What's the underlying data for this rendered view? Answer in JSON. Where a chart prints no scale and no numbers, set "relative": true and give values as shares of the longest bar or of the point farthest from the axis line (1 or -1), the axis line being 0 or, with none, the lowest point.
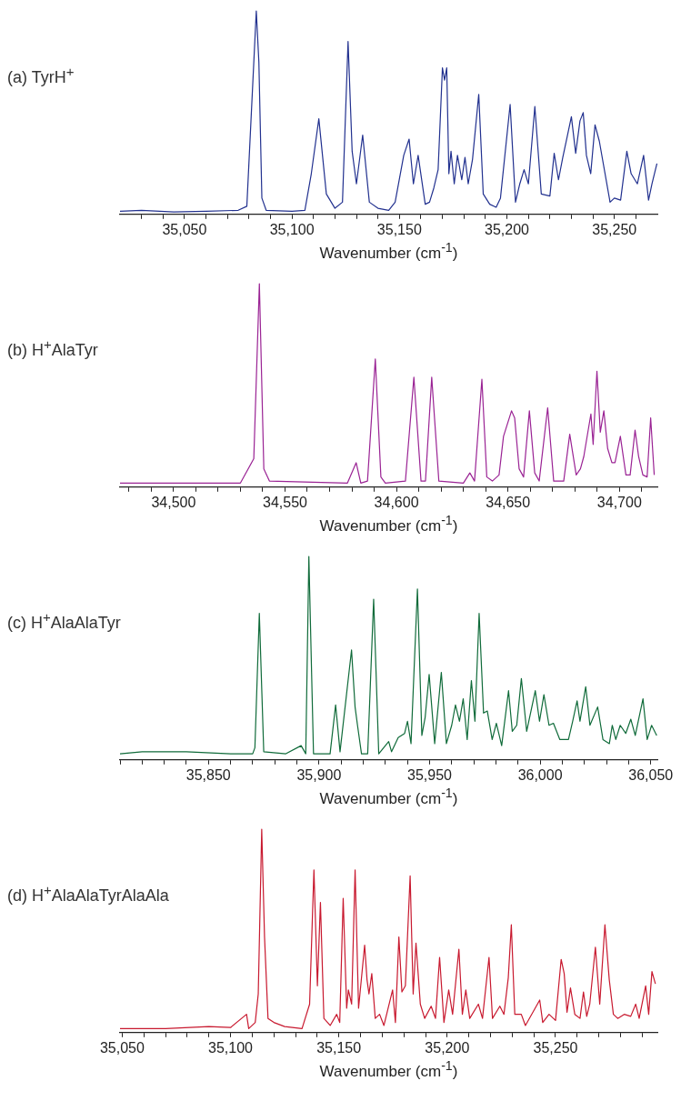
{
  "chart_data": [
    {
      "type": "line",
      "title": "(a) TyrH$^{+}$",
      "xlabel": "Wavenumber (cm$^{-1}$)",
      "relative": true,
      "marker": "none",
      "xlim": [
        35020,
        35270
      ],
      "xticks": [
        {
          "value": 35030,
          "label": null
        },
        {
          "value": 35040,
          "label": null
        },
        {
          "value": 35050,
          "label": "35,050"
        },
        {
          "value": 35060,
          "label": null
        },
        {
          "value": 35070,
          "label": null
        },
        {
          "value": 35080,
          "label": null
        },
        {
          "value": 35090,
          "label": null
        },
        {
          "value": 35100,
          "label": "35,100"
        },
        {
          "value": 35110,
          "label": null
        },
        {
          "value": 35120,
          "label": null
        },
        {
          "value": 35130,
          "label": null
        },
        {
          "value": 35140,
          "label": null
        },
        {
          "value": 35150,
          "label": "35,150"
        },
        {
          "value": 35160,
          "label": null
        },
        {
          "value": 35170,
          "label": null
        },
        {
          "value": 35180,
          "label": null
        },
        {
          "value": 35190,
          "label": null
        },
        {
          "value": 35200,
          "label": "35,200"
        },
        {
          "value": 35210,
          "label": null
        },
        {
          "value": 35220,
          "label": null
        },
        {
          "value": 35230,
          "label": null
        },
        {
          "value": 35240,
          "label": null
        },
        {
          "value": 35250,
          "label": "35,250"
        },
        {
          "value": 35260,
          "label": null
        }
      ],
      "x": [
        35020,
        35030,
        35045,
        35060,
        35075,
        35079,
        35083.4,
        35084.6,
        35086,
        35088,
        35100,
        35106,
        35109,
        35112.5,
        35116,
        35120,
        35123.5,
        35126.1,
        35128,
        35130,
        35132.9,
        35136,
        35140,
        35145,
        35148,
        35152,
        35154.5,
        35156.5,
        35158.7,
        35162,
        35164,
        35166,
        35168,
        35170,
        35171,
        35172,
        35173,
        35174,
        35175.5,
        35177,
        35179,
        35180.5,
        35182,
        35184,
        35186.9,
        35189,
        35192,
        35195,
        35197,
        35201.5,
        35204,
        35206,
        35208,
        35210,
        35213,
        35216,
        35220,
        35222,
        35224,
        35226,
        35228,
        35230,
        35232,
        35234,
        35235.5,
        35237,
        35239,
        35241,
        35243,
        35248,
        35250,
        35252.9,
        35255.8,
        35257.8,
        35260.7,
        35263.6,
        35265.9,
        35267.5,
        35269.8
      ],
      "series": [
        {
          "color": "#22318f",
          "values": [
            0.015,
            0.02,
            0.012,
            0.015,
            0.02,
            0.04,
            1.0,
            0.75,
            0.08,
            0.02,
            0.015,
            0.02,
            0.2,
            0.47,
            0.1,
            0.03,
            0.06,
            0.85,
            0.31,
            0.15,
            0.39,
            0.06,
            0.03,
            0.02,
            0.06,
            0.29,
            0.37,
            0.15,
            0.29,
            0.05,
            0.06,
            0.13,
            0.22,
            0.72,
            0.66,
            0.72,
            0.2,
            0.31,
            0.15,
            0.29,
            0.17,
            0.28,
            0.15,
            0.27,
            0.59,
            0.1,
            0.05,
            0.035,
            0.08,
            0.54,
            0.06,
            0.15,
            0.22,
            0.15,
            0.53,
            0.1,
            0.09,
            0.3,
            0.17,
            0.28,
            0.38,
            0.48,
            0.3,
            0.46,
            0.5,
            0.29,
            0.2,
            0.44,
            0.36,
            0.06,
            0.08,
            0.07,
            0.31,
            0.2,
            0.15,
            0.29,
            0.07,
            0.15,
            0.25
          ]
        }
      ]
    },
    {
      "type": "line",
      "title": "(b) H$^{+}$AlaTyr",
      "xlabel": "Wavenumber (cm$^{-1}$)",
      "relative": true,
      "marker": "none",
      "xlim": [
        34476,
        34717
      ],
      "xticks": [
        {
          "value": 34480,
          "label": null
        },
        {
          "value": 34490,
          "label": null
        },
        {
          "value": 34500,
          "label": "34,500"
        },
        {
          "value": 34510,
          "label": null
        },
        {
          "value": 34520,
          "label": null
        },
        {
          "value": 34530,
          "label": null
        },
        {
          "value": 34540,
          "label": null
        },
        {
          "value": 34550,
          "label": "34,550"
        },
        {
          "value": 34560,
          "label": null
        },
        {
          "value": 34570,
          "label": null
        },
        {
          "value": 34580,
          "label": null
        },
        {
          "value": 34590,
          "label": null
        },
        {
          "value": 34600,
          "label": "34,600"
        },
        {
          "value": 34610,
          "label": null
        },
        {
          "value": 34620,
          "label": null
        },
        {
          "value": 34630,
          "label": null
        },
        {
          "value": 34640,
          "label": null
        },
        {
          "value": 34650,
          "label": "34,650"
        },
        {
          "value": 34660,
          "label": null
        },
        {
          "value": 34670,
          "label": null
        },
        {
          "value": 34680,
          "label": null
        },
        {
          "value": 34690,
          "label": null
        },
        {
          "value": 34700,
          "label": "34,700"
        },
        {
          "value": 34710,
          "label": null
        }
      ],
      "x": [
        34476,
        34530,
        34536,
        34538.5,
        34540.5,
        34543,
        34578,
        34581.9,
        34584,
        34587,
        34590.5,
        34593,
        34595,
        34604,
        34607.8,
        34611,
        34613,
        34615.8,
        34619,
        34630,
        34632.9,
        34635,
        34638.3,
        34640.5,
        34643,
        34646,
        34648,
        34651.6,
        34653,
        34655,
        34657,
        34659.6,
        34662,
        34664,
        34667.8,
        34670.5,
        34675,
        34677.7,
        34680.6,
        34682.5,
        34684,
        34687.2,
        34688.2,
        34689.9,
        34691.4,
        34693,
        34694.7,
        34696.6,
        34698,
        34700.4,
        34702.9,
        34704.8,
        34707,
        34708.6,
        34710.5,
        34712.4,
        34714,
        34715.6
      ],
      "series": [
        {
          "color": "#9a2394",
          "values": [
            0.02,
            0.02,
            0.14,
            1.0,
            0.09,
            0.03,
            0.02,
            0.12,
            0.02,
            0.03,
            0.63,
            0.05,
            0.02,
            0.03,
            0.54,
            0.03,
            0.03,
            0.54,
            0.03,
            0.02,
            0.07,
            0.03,
            0.53,
            0.05,
            0.03,
            0.06,
            0.25,
            0.375,
            0.34,
            0.09,
            0.05,
            0.375,
            0.07,
            0.03,
            0.39,
            0.03,
            0.03,
            0.26,
            0.06,
            0.09,
            0.15,
            0.36,
            0.21,
            0.57,
            0.27,
            0.375,
            0.19,
            0.12,
            0.12,
            0.25,
            0.06,
            0.06,
            0.28,
            0.15,
            0.06,
            0.05,
            0.34,
            0.06
          ]
        }
      ]
    },
    {
      "type": "line",
      "title": "(c) H$^{+}$AlaAlaTyr",
      "xlabel": "Wavenumber (cm$^{-1}$)",
      "relative": true,
      "marker": "none",
      "xlim": [
        35810,
        36053
      ],
      "xticks": [
        {
          "value": 35810,
          "label": null
        },
        {
          "value": 35820,
          "label": null
        },
        {
          "value": 35830,
          "label": null
        },
        {
          "value": 35840,
          "label": null
        },
        {
          "value": 35850,
          "label": "35,850"
        },
        {
          "value": 35860,
          "label": null
        },
        {
          "value": 35870,
          "label": null
        },
        {
          "value": 35880,
          "label": null
        },
        {
          "value": 35890,
          "label": null
        },
        {
          "value": 35900,
          "label": "35,900"
        },
        {
          "value": 35910,
          "label": null
        },
        {
          "value": 35920,
          "label": null
        },
        {
          "value": 35930,
          "label": null
        },
        {
          "value": 35940,
          "label": null
        },
        {
          "value": 35950,
          "label": "35,950"
        },
        {
          "value": 35960,
          "label": null
        },
        {
          "value": 35970,
          "label": null
        },
        {
          "value": 35980,
          "label": null
        },
        {
          "value": 35990,
          "label": null
        },
        {
          "value": 36000,
          "label": "36,000"
        },
        {
          "value": 36010,
          "label": null
        },
        {
          "value": 36020,
          "label": null
        },
        {
          "value": 36030,
          "label": null
        },
        {
          "value": 36040,
          "label": null
        },
        {
          "value": 36050,
          "label": "36,050"
        }
      ],
      "x": [
        35810,
        35820,
        35840,
        35860,
        35870,
        35871,
        35873,
        35875,
        35885,
        35891.9,
        35894,
        35895.4,
        35897.5,
        35905,
        35907.5,
        35909.5,
        35914.7,
        35916.3,
        35917.4,
        35919.2,
        35922,
        35924.7,
        35927,
        35931.5,
        35932.8,
        35935.8,
        35938.7,
        35940,
        35941.6,
        35944.5,
        35946.5,
        35948,
        35949.8,
        35952.3,
        35955.3,
        35957.6,
        35960,
        35961.7,
        35963.5,
        35965.2,
        35967,
        35968.9,
        35970.5,
        35972.4,
        35974.4,
        35976.1,
        35978.3,
        35980.2,
        35982.6,
        35985.7,
        35987.4,
        35989.4,
        35991.5,
        35993.9,
        35997.8,
        35999.7,
        36001.7,
        36004,
        36006,
        36008.9,
        36012.8,
        36014.7,
        36016.7,
        36018,
        36020.6,
        36022.5,
        36026,
        36028.4,
        36031.3,
        36032.6,
        36034.2,
        36036.2,
        36038.7,
        36041,
        36043,
        36046.5,
        36048.4,
        36050.4,
        36052.7
      ],
      "series": [
        {
          "color": "#106b3a",
          "values": [
            0.03,
            0.04,
            0.04,
            0.03,
            0.03,
            0.06,
            0.72,
            0.04,
            0.03,
            0.07,
            0.03,
            1.0,
            0.03,
            0.03,
            0.27,
            0.04,
            0.54,
            0.26,
            0.17,
            0.03,
            0.03,
            0.79,
            0.03,
            0.09,
            0.04,
            0.11,
            0.13,
            0.19,
            0.08,
            0.84,
            0.12,
            0.21,
            0.42,
            0.08,
            0.43,
            0.08,
            0.17,
            0.27,
            0.19,
            0.3,
            0.1,
            0.39,
            0.19,
            0.72,
            0.23,
            0.24,
            0.1,
            0.18,
            0.07,
            0.34,
            0.14,
            0.17,
            0.4,
            0.14,
            0.34,
            0.19,
            0.32,
            0.17,
            0.18,
            0.1,
            0.1,
            0.19,
            0.29,
            0.19,
            0.36,
            0.17,
            0.26,
            0.1,
            0.08,
            0.17,
            0.1,
            0.17,
            0.13,
            0.2,
            0.12,
            0.3,
            0.1,
            0.17,
            0.12
          ]
        }
      ]
    },
    {
      "type": "line",
      "title": "(d) H$^{+}$AlaAlaTyrAlaAla",
      "xlabel": "Wavenumber (cm$^{-1}$)",
      "relative": true,
      "marker": "none",
      "xlim": [
        35049,
        35297
      ],
      "xticks": [
        {
          "value": 35050,
          "label": "35,050"
        },
        {
          "value": 35060,
          "label": null
        },
        {
          "value": 35070,
          "label": null
        },
        {
          "value": 35080,
          "label": null
        },
        {
          "value": 35090,
          "label": null
        },
        {
          "value": 35100,
          "label": "35,100"
        },
        {
          "value": 35110,
          "label": null
        },
        {
          "value": 35120,
          "label": null
        },
        {
          "value": 35130,
          "label": null
        },
        {
          "value": 35140,
          "label": null
        },
        {
          "value": 35150,
          "label": "35,150"
        },
        {
          "value": 35160,
          "label": null
        },
        {
          "value": 35170,
          "label": null
        },
        {
          "value": 35180,
          "label": null
        },
        {
          "value": 35190,
          "label": null
        },
        {
          "value": 35200,
          "label": "35,200"
        },
        {
          "value": 35210,
          "label": null
        },
        {
          "value": 35220,
          "label": null
        },
        {
          "value": 35230,
          "label": null
        },
        {
          "value": 35240,
          "label": null
        },
        {
          "value": 35250,
          "label": "35,250"
        },
        {
          "value": 35260,
          "label": null
        },
        {
          "value": 35270,
          "label": null
        },
        {
          "value": 35280,
          "label": null
        },
        {
          "value": 35290,
          "label": null
        }
      ],
      "x": [
        35049,
        35070,
        35090,
        35100,
        35107.4,
        35108.4,
        35111.4,
        35112.8,
        35114.4,
        35115.7,
        35117.3,
        35120,
        35125,
        35133,
        35136.5,
        35138.5,
        35140.1,
        35141.5,
        35143.1,
        35146,
        35149,
        35150.4,
        35152,
        35153.6,
        35154.4,
        35155.9,
        35157.5,
        35159.1,
        35161.9,
        35163,
        35163.9,
        35165.2,
        35166.8,
        35168.8,
        35170.8,
        35174.8,
        35176.1,
        35177.7,
        35179.1,
        35180.7,
        35182.9,
        35184.3,
        35185.6,
        35187.6,
        35189.6,
        35192.6,
        35194.6,
        35196.5,
        35198.5,
        35200.7,
        35202.5,
        35205.4,
        35207,
        35208.6,
        35210.4,
        35214.4,
        35216.3,
        35219.3,
        35220.9,
        35224.3,
        35226.2,
        35228.2,
        35229.6,
        35231.2,
        35234.2,
        35236.1,
        35242.7,
        35244.1,
        35247,
        35250,
        35252.6,
        35254,
        35255.3,
        35256.9,
        35258.9,
        35261.3,
        35262.9,
        35264.4,
        35265.8,
        35268.4,
        35270.4,
        35272.8,
        35274.8,
        35276.7,
        35278.7,
        35281.7,
        35284.7,
        35287,
        35288.6,
        35291.6,
        35293,
        35294.5,
        35296.1
      ],
      "series": [
        {
          "color": "#c8192f",
          "values": [
            0.02,
            0.02,
            0.03,
            0.025,
            0.09,
            0.02,
            0.05,
            0.19,
            1.0,
            0.47,
            0.07,
            0.05,
            0.03,
            0.02,
            0.14,
            0.8,
            0.23,
            0.64,
            0.07,
            0.035,
            0.09,
            0.05,
            0.66,
            0.12,
            0.21,
            0.14,
            0.8,
            0.12,
            0.43,
            0.26,
            0.19,
            0.29,
            0.07,
            0.09,
            0.035,
            0.21,
            0.05,
            0.47,
            0.2,
            0.23,
            0.77,
            0.19,
            0.44,
            0.14,
            0.07,
            0.13,
            0.07,
            0.37,
            0.05,
            0.21,
            0.09,
            0.41,
            0.09,
            0.21,
            0.07,
            0.14,
            0.07,
            0.37,
            0.07,
            0.13,
            0.09,
            0.27,
            0.53,
            0.09,
            0.09,
            0.035,
            0.16,
            0.05,
            0.09,
            0.06,
            0.36,
            0.29,
            0.1,
            0.22,
            0.09,
            0.07,
            0.2,
            0.08,
            0.14,
            0.42,
            0.14,
            0.53,
            0.26,
            0.09,
            0.07,
            0.09,
            0.08,
            0.14,
            0.07,
            0.23,
            0.09,
            0.3,
            0.24
          ]
        }
      ]
    }
  ]
}
